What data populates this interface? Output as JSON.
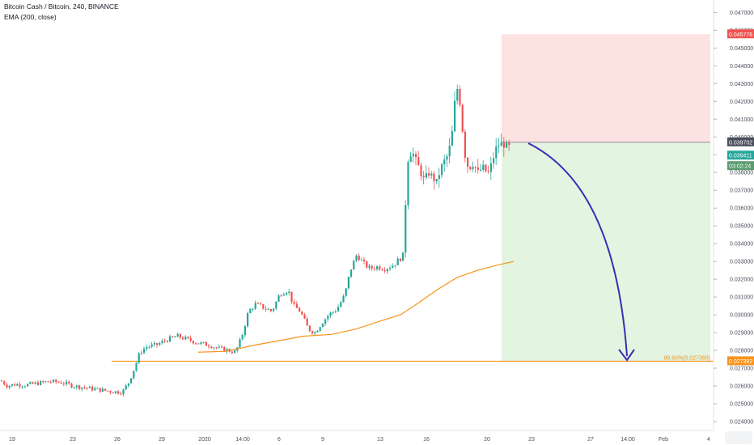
{
  "header": {
    "title": "Bitcoin Cash / Bitcoin, 240, BINANCE",
    "indicator": "EMA (200, close)"
  },
  "chart_data": {
    "type": "candlestick",
    "symbol": "Bitcoin Cash / Bitcoin",
    "interval": "240",
    "exchange": "BINANCE",
    "ylim": [
      0.0235,
      0.0477
    ],
    "x_ticks": [
      "19",
      "23",
      "26",
      "29",
      "2020",
      "14:00",
      "6",
      "9",
      "13",
      "16",
      "20",
      "23",
      "27",
      "14:00",
      "Feb",
      "4"
    ],
    "y_ticks": [
      "0.047000",
      "0.046000",
      "0.045000",
      "0.044000",
      "0.043000",
      "0.042000",
      "0.041000",
      "0.040000",
      "0.039000",
      "0.038000",
      "0.037000",
      "0.036000",
      "0.035000",
      "0.034000",
      "0.033000",
      "0.032000",
      "0.031000",
      "0.030000",
      "0.029000",
      "0.028000",
      "0.027000",
      "0.026000",
      "0.025000",
      "0.024000"
    ],
    "colors": {
      "up": "#26a69a",
      "down": "#ef5350",
      "ema": "#f7931a",
      "fib": "#f7931a",
      "arrow": "#3d2bb3",
      "stop_zone": "#fde2e2",
      "target_zone": "#e3f4e1"
    },
    "price_path": [
      [
        0,
        0.0263
      ],
      [
        8,
        0.026
      ],
      [
        18,
        0.0261
      ],
      [
        30,
        0.02605
      ],
      [
        45,
        0.02615
      ],
      [
        60,
        0.02625
      ],
      [
        75,
        0.0262
      ],
      [
        90,
        0.026
      ],
      [
        105,
        0.0259
      ],
      [
        120,
        0.0258
      ],
      [
        135,
        0.0257
      ],
      [
        150,
        0.02565
      ],
      [
        158,
        0.0262
      ],
      [
        165,
        0.027
      ],
      [
        172,
        0.0279
      ],
      [
        180,
        0.0282
      ],
      [
        192,
        0.0283
      ],
      [
        205,
        0.0286
      ],
      [
        218,
        0.0288
      ],
      [
        232,
        0.0286
      ],
      [
        245,
        0.0284
      ],
      [
        258,
        0.0283
      ],
      [
        270,
        0.0281
      ],
      [
        282,
        0.028
      ],
      [
        290,
        0.0279
      ],
      [
        298,
        0.0288
      ],
      [
        306,
        0.0302
      ],
      [
        315,
        0.0306
      ],
      [
        325,
        0.0304
      ],
      [
        335,
        0.0302
      ],
      [
        345,
        0.0312
      ],
      [
        355,
        0.0314
      ],
      [
        362,
        0.0305
      ],
      [
        370,
        0.0302
      ],
      [
        380,
        0.0292
      ],
      [
        388,
        0.029
      ],
      [
        396,
        0.0295
      ],
      [
        405,
        0.03
      ],
      [
        415,
        0.0303
      ],
      [
        425,
        0.0311
      ],
      [
        432,
        0.0325
      ],
      [
        440,
        0.0334
      ],
      [
        448,
        0.0329
      ],
      [
        456,
        0.0326
      ],
      [
        465,
        0.0327
      ],
      [
        475,
        0.0326
      ],
      [
        485,
        0.0328
      ],
      [
        492,
        0.0331
      ],
      [
        498,
        0.0334
      ],
      [
        502,
        0.0386
      ],
      [
        508,
        0.0392
      ],
      [
        515,
        0.0385
      ],
      [
        522,
        0.0376
      ],
      [
        530,
        0.038
      ],
      [
        538,
        0.0374
      ],
      [
        546,
        0.0385
      ],
      [
        553,
        0.039
      ],
      [
        558,
        0.0403
      ],
      [
        563,
        0.043
      ],
      [
        568,
        0.0418
      ],
      [
        573,
        0.0391
      ],
      [
        578,
        0.0382
      ],
      [
        584,
        0.0385
      ],
      [
        590,
        0.038
      ],
      [
        596,
        0.0383
      ],
      [
        602,
        0.0379
      ],
      [
        608,
        0.0387
      ],
      [
        613,
        0.0395
      ],
      [
        619,
        0.0396
      ],
      [
        625,
        0.0395
      ],
      [
        631,
        0.03941
      ]
    ],
    "ema200": [
      [
        245,
        0.0279
      ],
      [
        280,
        0.02795
      ],
      [
        315,
        0.0283
      ],
      [
        345,
        0.02855
      ],
      [
        375,
        0.0288
      ],
      [
        410,
        0.0289
      ],
      [
        440,
        0.0292
      ],
      [
        470,
        0.02965
      ],
      [
        495,
        0.03
      ],
      [
        515,
        0.0306
      ],
      [
        540,
        0.0314
      ],
      [
        565,
        0.0321
      ],
      [
        590,
        0.0325
      ],
      [
        615,
        0.0328
      ],
      [
        635,
        0.033
      ]
    ],
    "current_price": "0.039411",
    "last_bar_high": "0.039702",
    "countdown": "03:02:24",
    "position": {
      "stop_loss": "0.045776",
      "entry": "0.039702",
      "target": "0.027392"
    },
    "fib_level": {
      "label": "88.60%(0.027360)",
      "price_label": "0.027392"
    }
  }
}
